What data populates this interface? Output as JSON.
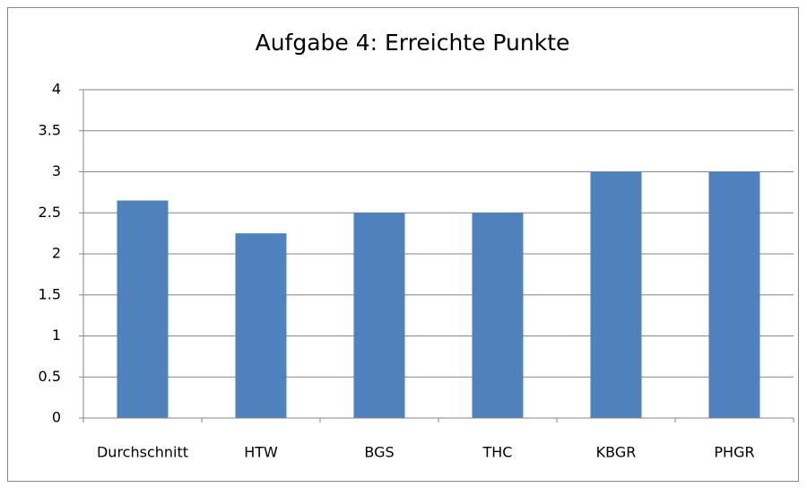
{
  "chart_data": {
    "type": "bar",
    "title": "Aufgabe 4: Erreichte Punkte",
    "categories": [
      "Durchschnitt",
      "HTW",
      "BGS",
      "THC",
      "KBGR",
      "PHGR"
    ],
    "values": [
      2.65,
      2.25,
      2.5,
      2.5,
      3,
      3
    ],
    "color": "#4f81bd",
    "ylim": [
      0,
      4
    ],
    "yticks": [
      0,
      0.5,
      1,
      1.5,
      2,
      2.5,
      3,
      3.5,
      4
    ],
    "grid": true
  }
}
